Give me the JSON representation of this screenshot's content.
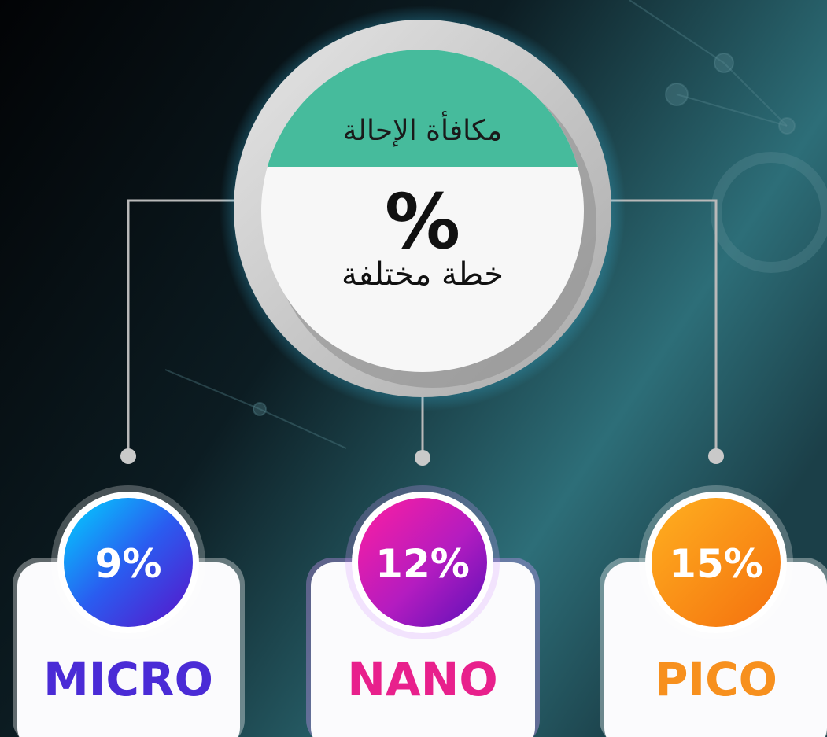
{
  "header": {
    "title": "مكافأة الإحالة",
    "symbol": "%",
    "subtitle": "خطة مختلفة"
  },
  "nodes": [
    {
      "percent": "9%",
      "label": "MICRO"
    },
    {
      "percent": "12%",
      "label": "NANO"
    },
    {
      "percent": "15%",
      "label": "PICO"
    }
  ]
}
